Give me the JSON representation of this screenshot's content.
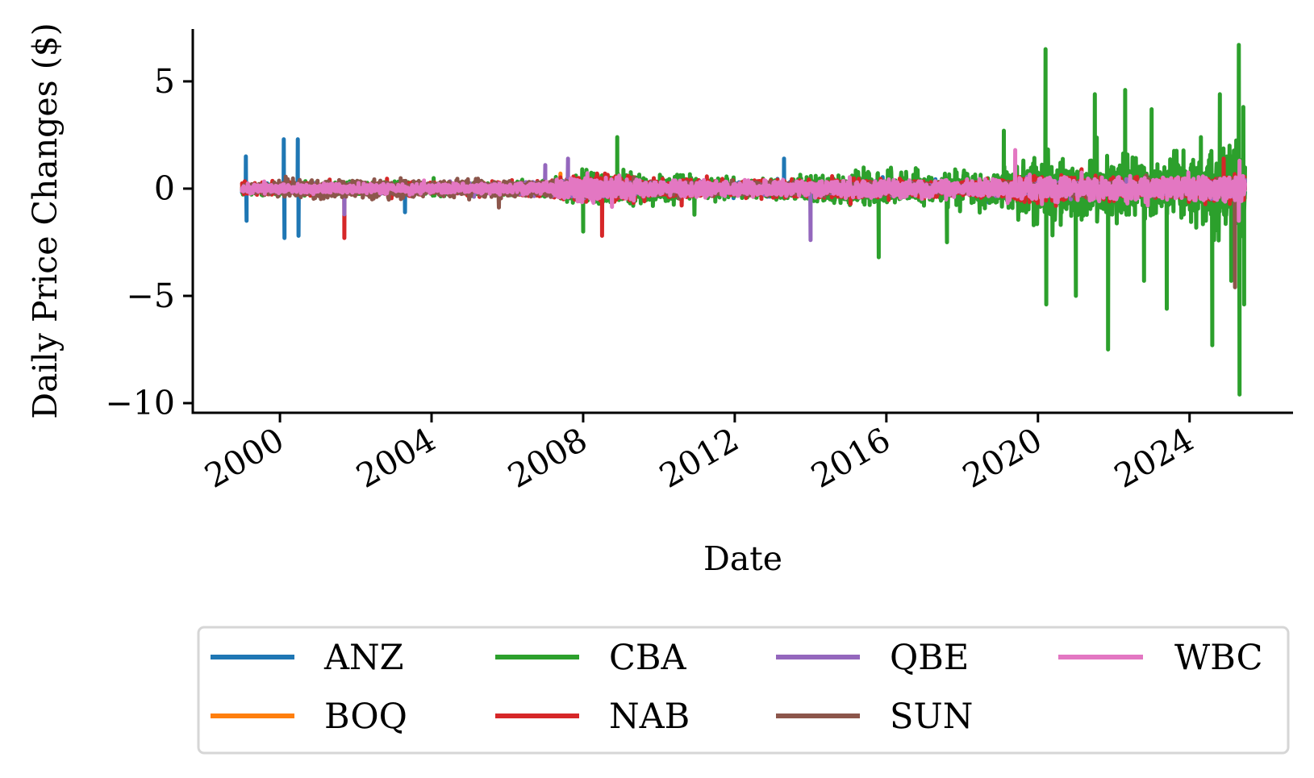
{
  "chart_data": {
    "type": "line",
    "title": "",
    "xlabel": "Date",
    "ylabel": "Daily Price Changes ($)",
    "xlim": [
      1997.7,
      2026.73
    ],
    "ylim": [
      -10.45,
      7.44
    ],
    "x_ticks": [
      2000,
      2004,
      2008,
      2012,
      2016,
      2020,
      2024
    ],
    "x_tick_labels": [
      "2000",
      "2004",
      "2008",
      "2012",
      "2016",
      "2020",
      "2024"
    ],
    "y_ticks": [
      5,
      0,
      -5,
      -10
    ],
    "y_tick_labels": [
      "5",
      "0",
      "−5",
      "−10"
    ],
    "x_range_of_data": [
      1999.0,
      2025.47
    ],
    "grid": false,
    "legend_position": "below-center",
    "legend_columns": 4,
    "amplitude_years": [
      1999,
      2025
    ],
    "series": [
      {
        "name": "ANZ",
        "color": "#1f77b4",
        "amplitude_by_year": [
          0.3,
          0.3,
          0.3,
          0.3,
          0.3,
          0.3,
          0.3,
          0.3,
          0.4,
          0.6,
          0.6,
          0.4,
          0.4,
          0.4,
          0.5,
          0.4,
          0.5,
          0.5,
          0.4,
          0.4,
          0.5,
          0.8,
          0.5,
          0.5,
          0.5,
          0.6,
          0.7
        ],
        "spikes": [
          [
            1999.1,
            1.5
          ],
          [
            1999.12,
            -1.5
          ],
          [
            2000.1,
            2.3
          ],
          [
            2000.12,
            -2.3
          ],
          [
            2000.47,
            2.3
          ],
          [
            2000.49,
            -2.2
          ],
          [
            2003.3,
            -1.1
          ],
          [
            2013.3,
            1.4
          ]
        ]
      },
      {
        "name": "BOQ",
        "color": "#ff7f0e",
        "amplitude_by_year": [
          0.15,
          0.15,
          0.15,
          0.15,
          0.15,
          0.15,
          0.15,
          0.2,
          0.25,
          0.35,
          0.3,
          0.25,
          0.2,
          0.2,
          0.2,
          0.2,
          0.25,
          0.25,
          0.2,
          0.2,
          0.2,
          0.3,
          0.25,
          0.25,
          0.25,
          0.25,
          0.3
        ],
        "spikes": [
          [
            2007.4,
            0.7
          ]
        ]
      },
      {
        "name": "CBA",
        "color": "#2ca02c",
        "amplitude_by_year": [
          0.4,
          0.4,
          0.4,
          0.4,
          0.4,
          0.4,
          0.4,
          0.4,
          0.6,
          1.2,
          1.1,
          0.8,
          0.8,
          0.6,
          0.7,
          0.8,
          1.1,
          1.2,
          1.0,
          1.1,
          1.2,
          2.3,
          1.8,
          1.9,
          1.8,
          2.0,
          2.8
        ],
        "spikes": [
          [
            2008.0,
            -2.0
          ],
          [
            2008.9,
            2.4
          ],
          [
            2015.8,
            -3.2
          ],
          [
            2017.6,
            -2.5
          ],
          [
            2019.1,
            2.7
          ],
          [
            2020.2,
            6.5
          ],
          [
            2020.22,
            -5.4
          ],
          [
            2021.0,
            -5.0
          ],
          [
            2021.5,
            4.4
          ],
          [
            2021.85,
            -7.5
          ],
          [
            2022.3,
            4.6
          ],
          [
            2022.8,
            -4.3
          ],
          [
            2023.0,
            3.7
          ],
          [
            2023.4,
            -5.6
          ],
          [
            2024.3,
            2.4
          ],
          [
            2024.6,
            -7.3
          ],
          [
            2024.8,
            4.4
          ],
          [
            2025.1,
            -4.3
          ],
          [
            2025.3,
            6.7
          ],
          [
            2025.32,
            -9.6
          ],
          [
            2025.42,
            3.8
          ],
          [
            2025.44,
            -5.4
          ]
        ]
      },
      {
        "name": "NAB",
        "color": "#d62728",
        "amplitude_by_year": [
          0.4,
          0.4,
          0.4,
          0.4,
          0.4,
          0.4,
          0.4,
          0.4,
          0.5,
          0.9,
          0.8,
          0.6,
          0.6,
          0.5,
          0.6,
          0.6,
          0.7,
          0.6,
          0.5,
          0.5,
          0.6,
          0.9,
          0.7,
          0.7,
          0.7,
          0.8,
          0.9
        ],
        "spikes": [
          [
            2001.7,
            -2.3
          ],
          [
            2008.5,
            -2.2
          ],
          [
            2024.9,
            1.4
          ]
        ]
      },
      {
        "name": "QBE",
        "color": "#9467bd",
        "amplitude_by_year": [
          0.2,
          0.2,
          0.3,
          0.3,
          0.3,
          0.3,
          0.3,
          0.3,
          0.5,
          0.5,
          0.4,
          0.3,
          0.4,
          0.3,
          0.3,
          0.3,
          0.3,
          0.3,
          0.3,
          0.3,
          0.3,
          0.4,
          0.4,
          0.4,
          0.4,
          0.5,
          0.5
        ],
        "spikes": [
          [
            2001.7,
            -1.2
          ],
          [
            2007.0,
            1.1
          ],
          [
            2007.6,
            1.4
          ],
          [
            2014.0,
            -2.4
          ]
        ]
      },
      {
        "name": "SUN",
        "color": "#8c564b",
        "amplitude_by_year": [
          0.3,
          0.5,
          0.6,
          0.6,
          0.6,
          0.5,
          0.6,
          0.5,
          0.5,
          0.6,
          0.5,
          0.4,
          0.4,
          0.4,
          0.4,
          0.4,
          0.4,
          0.4,
          0.3,
          0.3,
          0.4,
          0.5,
          0.5,
          0.5,
          0.5,
          0.5,
          0.6
        ],
        "spikes": [
          [
            2025.2,
            -4.6
          ]
        ]
      },
      {
        "name": "WBC",
        "color": "#e377c2",
        "amplitude_by_year": [
          0.3,
          0.3,
          0.3,
          0.3,
          0.3,
          0.3,
          0.3,
          0.3,
          0.4,
          0.8,
          0.7,
          0.5,
          0.5,
          0.5,
          0.5,
          0.5,
          0.5,
          0.6,
          0.5,
          0.5,
          0.6,
          0.9,
          0.7,
          0.7,
          0.7,
          0.8,
          0.9
        ],
        "spikes": [
          [
            2019.4,
            1.8
          ],
          [
            2025.3,
            -1.5
          ],
          [
            2025.32,
            1.3
          ]
        ]
      }
    ]
  }
}
